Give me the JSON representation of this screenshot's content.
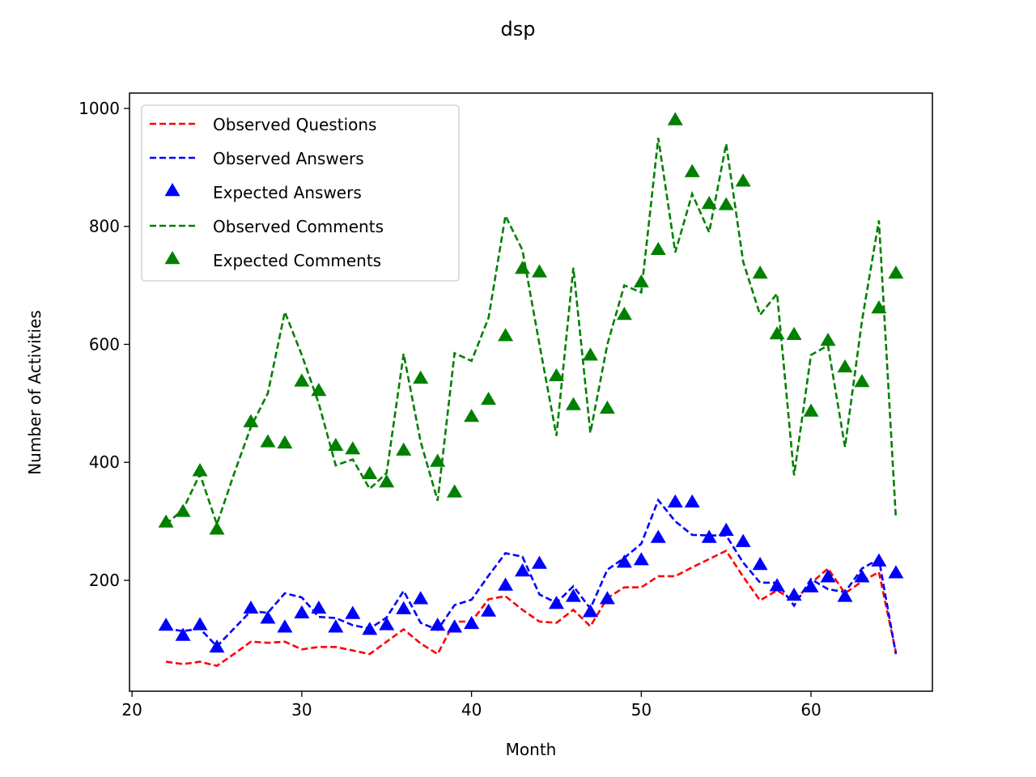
{
  "chart_data": {
    "type": "line",
    "title": "dsp",
    "xlabel": "Month",
    "ylabel": "Number of Activities",
    "xlim": [
      19.85,
      67.15
    ],
    "ylim": [
      12,
      1026
    ],
    "xticks": [
      20,
      30,
      40,
      50,
      60
    ],
    "yticks": [
      200,
      400,
      600,
      800,
      1000
    ],
    "grid": false,
    "legend": "top-left",
    "x": [
      22,
      23,
      24,
      25,
      26,
      27,
      28,
      29,
      30,
      31,
      32,
      33,
      34,
      35,
      36,
      37,
      38,
      39,
      40,
      41,
      42,
      43,
      44,
      45,
      46,
      47,
      48,
      49,
      50,
      51,
      52,
      53,
      54,
      55,
      56,
      57,
      58,
      59,
      60,
      61,
      62,
      63,
      64,
      65
    ],
    "series": [
      {
        "name": "Observed Questions",
        "style": "dashed-line",
        "color": "#ff0000",
        "values": [
          62,
          58,
          62,
          55,
          75,
          96,
          94,
          96,
          83,
          87,
          87,
          81,
          75,
          96,
          117,
          93,
          75,
          130,
          130,
          168,
          173,
          150,
          130,
          128,
          150,
          122,
          170,
          188,
          188,
          207,
          207,
          222,
          236,
          250,
          206,
          166,
          183,
          165,
          195,
          220,
          178,
          198,
          214,
          78
        ]
      },
      {
        "name": "Observed Answers",
        "style": "dashed-line",
        "color": "#0000ff",
        "values": [
          118,
          114,
          118,
          88,
          118,
          148,
          145,
          178,
          171,
          138,
          136,
          124,
          118,
          137,
          182,
          128,
          116,
          158,
          167,
          208,
          246,
          240,
          176,
          162,
          190,
          152,
          218,
          238,
          262,
          336,
          300,
          277,
          276,
          276,
          230,
          196,
          196,
          157,
          202,
          185,
          180,
          220,
          236,
          75
        ]
      },
      {
        "name": "Expected Answers",
        "style": "triangle-markers",
        "color": "#0000ff",
        "values": [
          123,
          106,
          124,
          86,
          null,
          152,
          135,
          120,
          144,
          152,
          120,
          143,
          116,
          124,
          151,
          168,
          123,
          120,
          126,
          147,
          191,
          215,
          228,
          160,
          172,
          146,
          168,
          230,
          234,
          272,
          332,
          332,
          272,
          284,
          265,
          226,
          190,
          174,
          188,
          205,
          172,
          205,
          232,
          212
        ]
      },
      {
        "name": "Observed Comments",
        "style": "dashed-line",
        "color": "#008000",
        "values": [
          295,
          320,
          380,
          295,
          380,
          460,
          517,
          655,
          582,
          500,
          395,
          405,
          355,
          382,
          584,
          435,
          335,
          585,
          572,
          645,
          818,
          760,
          600,
          445,
          730,
          450,
          600,
          700,
          688,
          950,
          756,
          855,
          790,
          940,
          740,
          650,
          686,
          378,
          582,
          598,
          426,
          640,
          810,
          305
        ]
      },
      {
        "name": "Expected Comments",
        "style": "triangle-markers",
        "color": "#008000",
        "values": [
          298,
          316,
          385,
          286,
          null,
          468,
          434,
          432,
          537,
          521,
          428,
          422,
          380,
          366,
          420,
          542,
          401,
          349,
          477,
          506,
          614,
          728,
          722,
          546,
          497,
          581,
          491,
          650,
          705,
          760,
          980,
          892,
          838,
          836,
          876,
          720,
          617,
          616,
          486,
          606,
          561,
          536,
          661,
          720
        ]
      }
    ]
  }
}
